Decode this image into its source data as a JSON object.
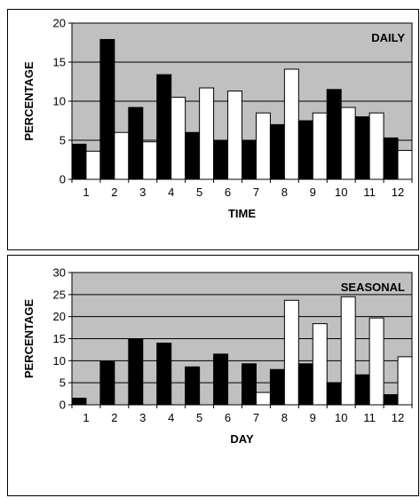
{
  "chart_data": [
    {
      "type": "bar",
      "label": "DAILY",
      "xlabel": "TIME",
      "ylabel": "PERCENTAGE",
      "ylim": [
        0,
        20
      ],
      "yticks": [
        "0",
        "5",
        "10",
        "15",
        "20"
      ],
      "categories": [
        "1",
        "2",
        "3",
        "4",
        "5",
        "6",
        "7",
        "8",
        "9",
        "10",
        "11",
        "12"
      ],
      "grid": true,
      "series": [
        {
          "color": "#000000",
          "values": [
            4.5,
            17.9,
            9.2,
            13.4,
            6.0,
            5.0,
            5.0,
            7.0,
            7.5,
            11.5,
            8.0,
            5.3
          ]
        },
        {
          "color": "#ffffff",
          "values": [
            3.6,
            6.0,
            4.8,
            10.5,
            11.7,
            11.3,
            8.5,
            14.1,
            8.5,
            9.2,
            8.5,
            3.7
          ]
        }
      ]
    },
    {
      "type": "bar",
      "label": "SEASONAL",
      "xlabel": "DAY",
      "ylabel": "PERCENTAGE",
      "ylim": [
        0,
        30
      ],
      "yticks": [
        "0",
        "5",
        "10",
        "15",
        "20",
        "25",
        "30"
      ],
      "categories": [
        "1",
        "2",
        "3",
        "4",
        "5",
        "6",
        "7",
        "8",
        "9",
        "10",
        "11",
        "12"
      ],
      "grid": true,
      "series": [
        {
          "color": "#000000",
          "values": [
            1.5,
            9.8,
            14.8,
            14.0,
            8.6,
            11.5,
            9.3,
            8.0,
            9.3,
            5.0,
            6.8,
            2.3
          ]
        },
        {
          "color": "#ffffff",
          "values": [
            0,
            0,
            0,
            0,
            0,
            0,
            2.8,
            23.7,
            18.4,
            24.5,
            19.7,
            10.9
          ]
        }
      ]
    }
  ],
  "colors": {
    "plot_background": "#c0c0c0",
    "gridline": "#000000",
    "axis": "#000000"
  }
}
